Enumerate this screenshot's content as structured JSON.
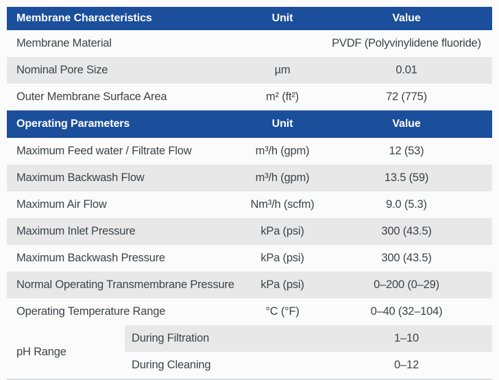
{
  "colors": {
    "header_bg": "#1b4e9b",
    "header_text": "#ffffff",
    "shaded_row_bg": "#e8e8e8",
    "body_text": "#3e4347",
    "bottom_rule": "#dcdde0",
    "page_bg": "#fbfbfb"
  },
  "table": {
    "sections": [
      {
        "header": {
          "title": "Membrane Characteristics",
          "unit": "Unit",
          "value": "Value"
        },
        "rows": [
          {
            "label": "Membrane Material",
            "unit": "",
            "value": "PVDF (Polyvinylidene fluoride)"
          },
          {
            "label": "Nominal Pore Size",
            "unit": "µm",
            "value": "0.01"
          },
          {
            "label": "Outer Membrane Surface Area",
            "unit": "m² (ft²)",
            "value": "72 (775)"
          }
        ]
      },
      {
        "header": {
          "title": "Operating Parameters",
          "unit": "Unit",
          "value": "Value"
        },
        "rows": [
          {
            "label": "Maximum Feed water / Filtrate Flow",
            "unit": "m³/h (gpm)",
            "value": "12 (53)"
          },
          {
            "label": "Maximum Backwash Flow",
            "unit": "m³/h (gpm)",
            "value": "13.5 (59)"
          },
          {
            "label": "Maximum Air Flow",
            "unit": "Nm³/h (scfm)",
            "value": "9.0 (5.3)"
          },
          {
            "label": "Maximum Inlet Pressure",
            "unit": "kPa (psi)",
            "value": "300 (43.5)"
          },
          {
            "label": "Maximum Backwash Pressure",
            "unit": "kPa (psi)",
            "value": "300 (43.5)"
          },
          {
            "label": "Normal Operating Transmembrane Pressure",
            "unit": "kPa (psi)",
            "value": "0–200 (0–29)"
          },
          {
            "label": "Operating Temperature Range",
            "unit": "°C (°F)",
            "value": "0–40 (32–104)"
          }
        ]
      }
    ],
    "ph_group": {
      "label": "pH Range",
      "rows": [
        {
          "label": "During Filtration",
          "value": "1–10"
        },
        {
          "label": "During Cleaning",
          "value": "0–12"
        }
      ]
    }
  }
}
